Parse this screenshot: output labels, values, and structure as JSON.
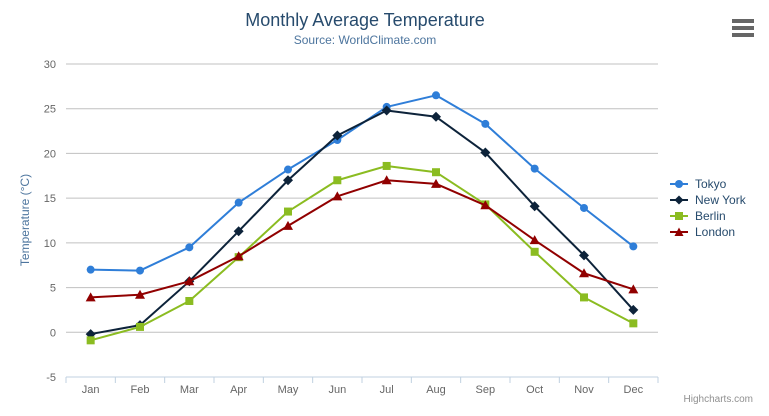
{
  "credits": "Highcharts.com",
  "chart_data": {
    "type": "line",
    "title": "Monthly Average Temperature",
    "subtitle": "Source: WorldClimate.com",
    "xlabel": "",
    "ylabel": "Temperature (°C)",
    "categories": [
      "Jan",
      "Feb",
      "Mar",
      "Apr",
      "May",
      "Jun",
      "Jul",
      "Aug",
      "Sep",
      "Oct",
      "Nov",
      "Dec"
    ],
    "series": [
      {
        "name": "Tokyo",
        "color": "#2f7ed8",
        "marker": "circle",
        "values": [
          7.0,
          6.9,
          9.5,
          14.5,
          18.2,
          21.5,
          25.2,
          26.5,
          23.3,
          18.3,
          13.9,
          9.6
        ]
      },
      {
        "name": "New York",
        "color": "#0d233a",
        "marker": "diamond",
        "values": [
          -0.2,
          0.8,
          5.7,
          11.3,
          17.0,
          22.0,
          24.8,
          24.1,
          20.1,
          14.1,
          8.6,
          2.5
        ]
      },
      {
        "name": "Berlin",
        "color": "#8bbc21",
        "marker": "square",
        "values": [
          -0.9,
          0.6,
          3.5,
          8.4,
          13.5,
          17.0,
          18.6,
          17.9,
          14.3,
          9.0,
          3.9,
          1.0
        ]
      },
      {
        "name": "London",
        "color": "#910000",
        "marker": "triangle",
        "values": [
          3.9,
          4.2,
          5.7,
          8.5,
          11.9,
          15.2,
          17.0,
          16.6,
          14.2,
          10.3,
          6.6,
          4.8
        ]
      }
    ],
    "ylim": [
      -5,
      30
    ],
    "ytick_interval": 5,
    "grid": true,
    "legend_position": "right",
    "colors": {
      "grid_line": "#c0c0c0",
      "axis_line": "#c0d0e0",
      "axis_label": "#666666",
      "title_text": "#274b6d",
      "subtitle_text": "#4d759e",
      "legend_text": "#274b6d",
      "credits_text": "#909090"
    }
  }
}
